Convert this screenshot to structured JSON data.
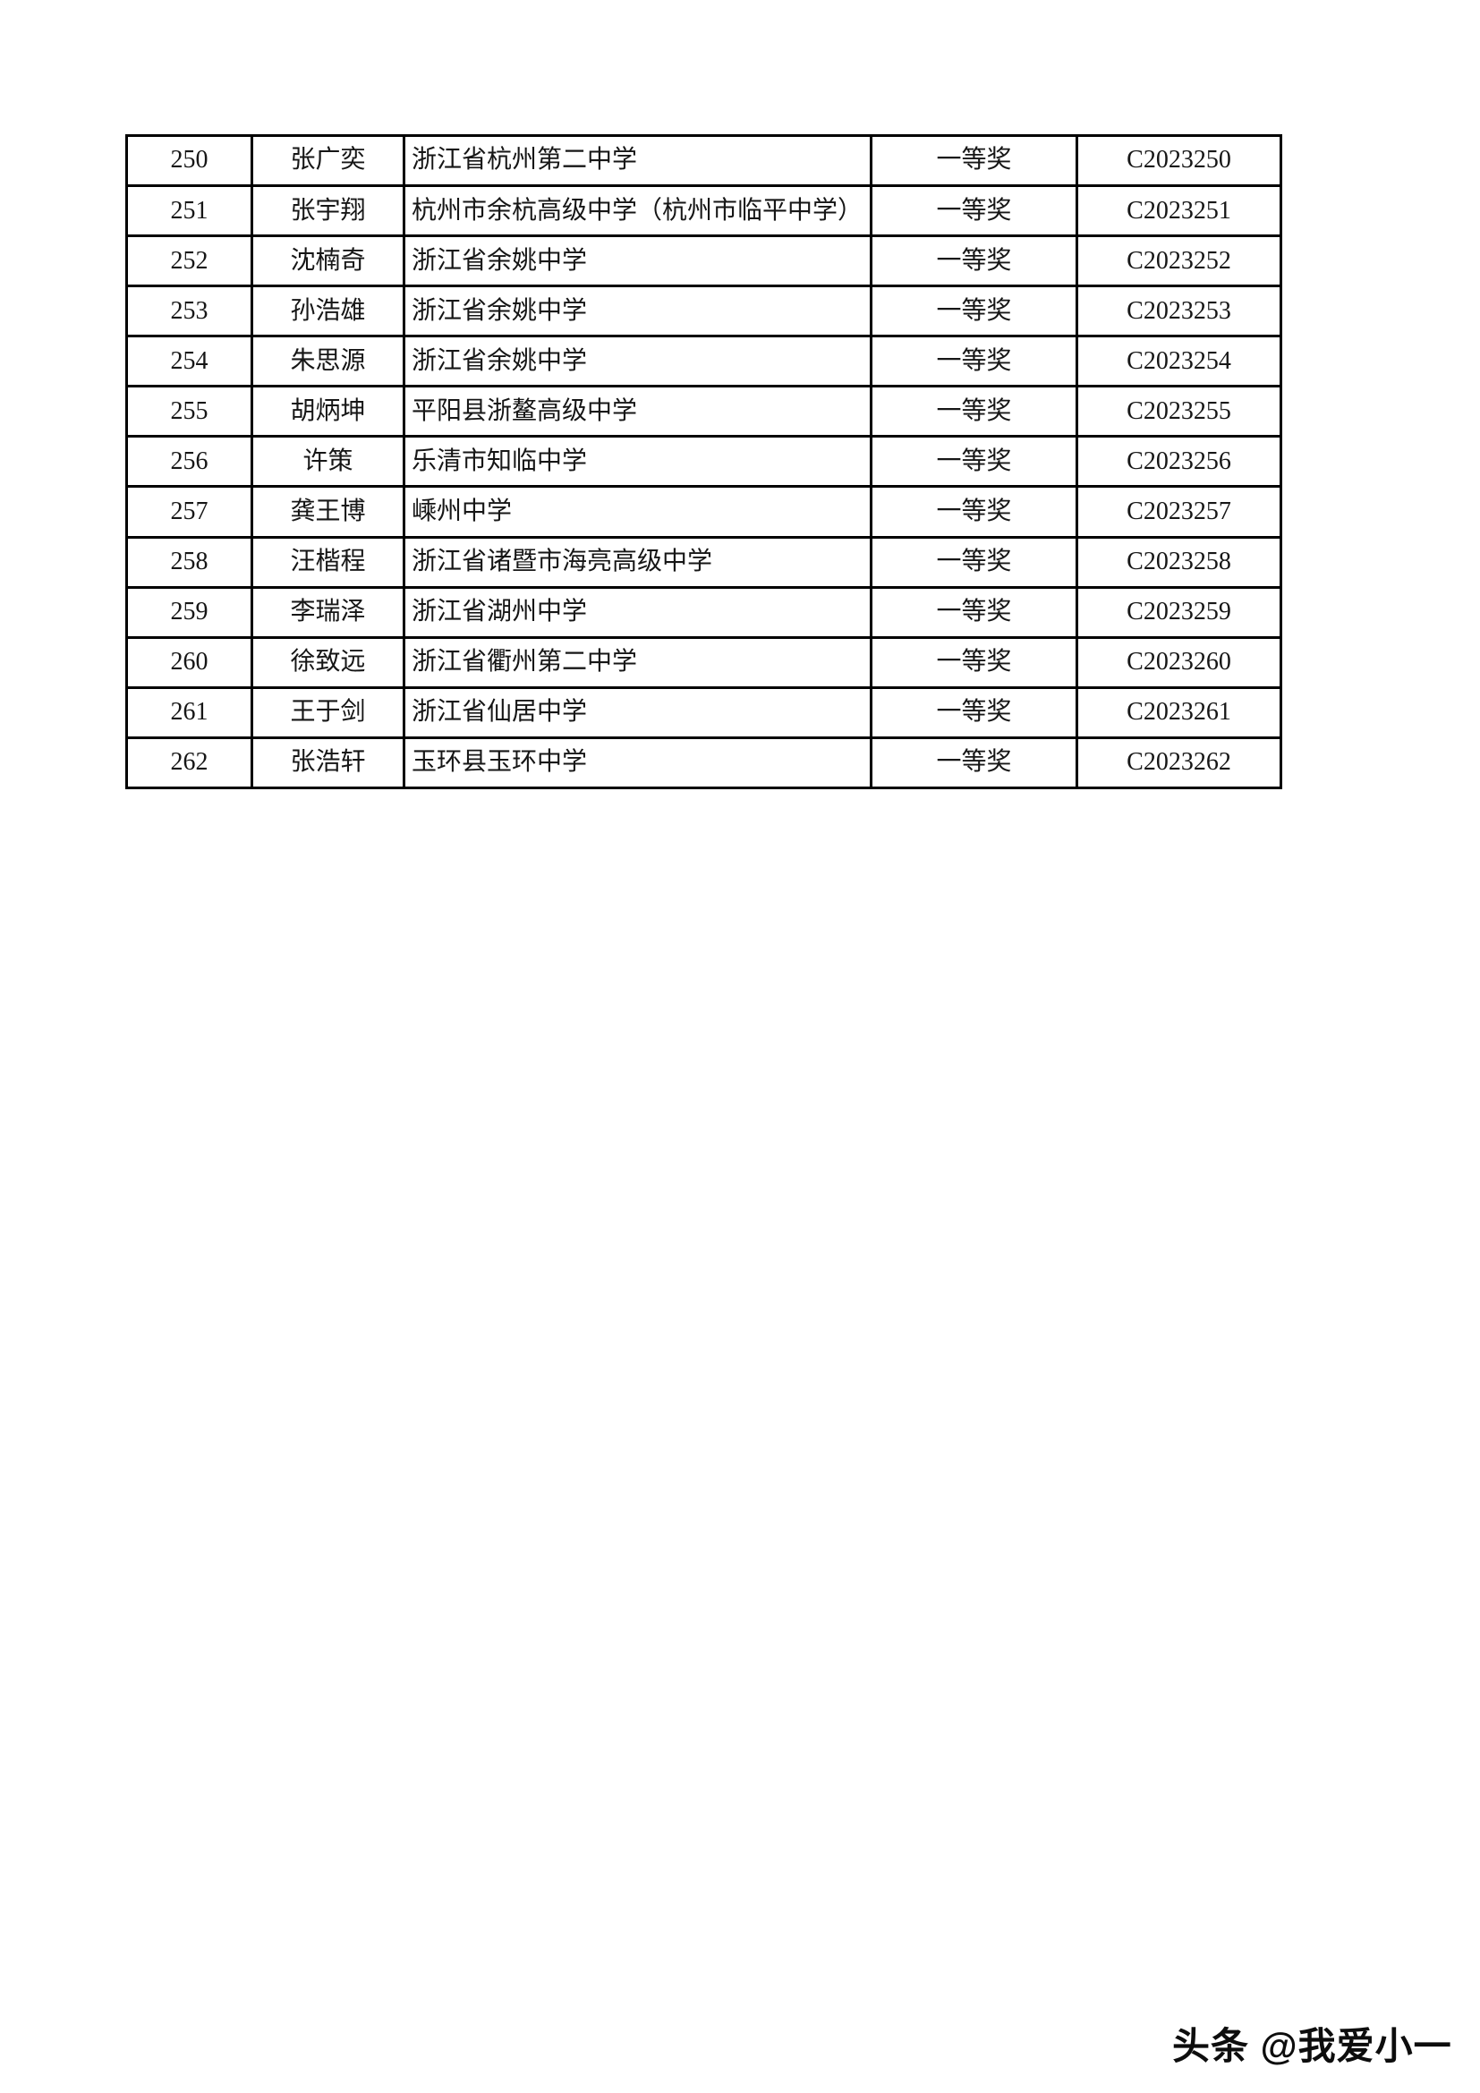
{
  "table": {
    "rows": [
      {
        "no": "250",
        "name": "张广奕",
        "school": "浙江省杭州第二中学",
        "award": "一等奖",
        "cert": "C2023250"
      },
      {
        "no": "251",
        "name": "张宇翔",
        "school": "杭州市余杭高级中学（杭州市临平中学）",
        "award": "一等奖",
        "cert": "C2023251"
      },
      {
        "no": "252",
        "name": "沈楠奇",
        "school": "浙江省余姚中学",
        "award": "一等奖",
        "cert": "C2023252"
      },
      {
        "no": "253",
        "name": "孙浩雄",
        "school": "浙江省余姚中学",
        "award": "一等奖",
        "cert": "C2023253"
      },
      {
        "no": "254",
        "name": "朱思源",
        "school": "浙江省余姚中学",
        "award": "一等奖",
        "cert": "C2023254"
      },
      {
        "no": "255",
        "name": "胡炳坤",
        "school": "平阳县浙鳌高级中学",
        "award": "一等奖",
        "cert": "C2023255"
      },
      {
        "no": "256",
        "name": "许策",
        "school": "乐清市知临中学",
        "award": "一等奖",
        "cert": "C2023256"
      },
      {
        "no": "257",
        "name": "龚王博",
        "school": "嵊州中学",
        "award": "一等奖",
        "cert": "C2023257"
      },
      {
        "no": "258",
        "name": "汪楷程",
        "school": "浙江省诸暨市海亮高级中学",
        "award": "一等奖",
        "cert": "C2023258"
      },
      {
        "no": "259",
        "name": "李瑞泽",
        "school": "浙江省湖州中学",
        "award": "一等奖",
        "cert": "C2023259"
      },
      {
        "no": "260",
        "name": "徐致远",
        "school": "浙江省衢州第二中学",
        "award": "一等奖",
        "cert": "C2023260"
      },
      {
        "no": "261",
        "name": "王于剑",
        "school": "浙江省仙居中学",
        "award": "一等奖",
        "cert": "C2023261"
      },
      {
        "no": "262",
        "name": "张浩轩",
        "school": "玉环县玉环中学",
        "award": "一等奖",
        "cert": "C2023262"
      }
    ]
  },
  "watermark": {
    "text": "头条 @我爱小一"
  },
  "colors": {
    "page_background": "#ffffff",
    "table_border": "#000000",
    "text": "#161616"
  }
}
